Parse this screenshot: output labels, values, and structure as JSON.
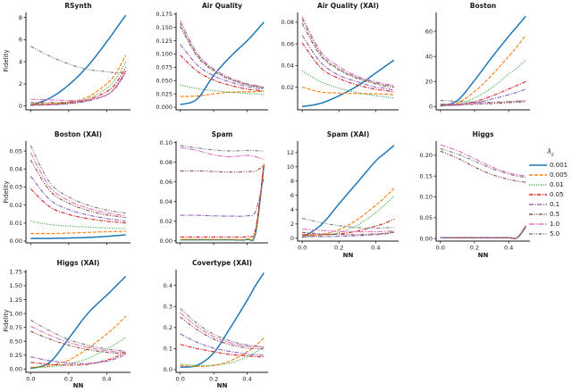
{
  "figure": {
    "ylabel": "Fidelity",
    "xlabel": "NN",
    "background": "#ffffff",
    "axis_color": "#1a1a1a",
    "legend": {
      "title_main": "λ",
      "title_sub": "s",
      "entries": [
        {
          "label": "0.001",
          "color": "#1f77b4",
          "dash": ""
        },
        {
          "label": "0.005",
          "color": "#ff7f0e",
          "dash": "4 1.8"
        },
        {
          "label": "0.01",
          "color": "#2ca02c",
          "dash": "1 1.6"
        },
        {
          "label": "0.05",
          "color": "#d62728",
          "dash": "4.5 1.5 1.2 1.5"
        },
        {
          "label": "0.1",
          "color": "#9467bd",
          "dash": "5 1.5 1.2 1.5"
        },
        {
          "label": "0.5",
          "color": "#8c564b",
          "dash": "4 1.5 1.2 1.5 1.2 1.5"
        },
        {
          "label": "1.0",
          "color": "#e377c2",
          "dash": "6 1.5 1.5 1.5"
        },
        {
          "label": "5.0",
          "color": "#7f7f7f",
          "dash": "4 1.5 1 1.5 1 1.5"
        }
      ]
    }
  },
  "chart_data": {
    "type": "line",
    "x": [
      0.0,
      0.1,
      0.2,
      0.3,
      0.4,
      0.45,
      0.5
    ],
    "xlim": [
      -0.025,
      0.525
    ],
    "xticks": [
      0.0,
      0.2,
      0.4
    ],
    "xtick_labels": [
      "0.0",
      "0.2",
      "0.4"
    ],
    "series_names": [
      "0.001",
      "0.005",
      "0.01",
      "0.05",
      "0.1",
      "0.5",
      "1.0",
      "5.0"
    ],
    "plots": [
      {
        "title": "RSynth",
        "ylabel": "Fidelity",
        "xlabel": "",
        "xticks_labeled": false,
        "ylim": [
          -0.35,
          8.45
        ],
        "yticks": [
          0,
          2,
          4,
          6,
          8
        ],
        "ytick_labels": [
          "0",
          "2",
          "4",
          "6",
          "8"
        ],
        "series": [
          [
            0.05,
            0.7,
            1.9,
            3.6,
            5.8,
            7.0,
            8.2
          ],
          [
            0.15,
            0.2,
            0.35,
            0.8,
            2.0,
            3.0,
            4.6
          ],
          [
            0.1,
            0.15,
            0.3,
            0.65,
            1.6,
            2.5,
            4.0
          ],
          [
            0.1,
            0.12,
            0.25,
            0.55,
            1.3,
            2.1,
            3.5
          ],
          [
            0.05,
            0.1,
            0.2,
            0.45,
            1.0,
            1.8,
            3.1
          ],
          [
            0.3,
            0.3,
            0.35,
            0.5,
            1.0,
            1.7,
            3.0
          ],
          [
            0.6,
            0.55,
            0.5,
            0.55,
            1.0,
            1.8,
            3.2
          ],
          [
            5.4,
            4.5,
            3.8,
            3.3,
            3.1,
            3.0,
            3.1
          ]
        ]
      },
      {
        "title": "Air Quality",
        "ylabel": "",
        "xlabel": "",
        "xticks_labeled": false,
        "ylim": [
          -0.005,
          0.178
        ],
        "yticks": [
          0.0,
          0.025,
          0.05,
          0.075,
          0.1,
          0.125,
          0.15,
          0.175
        ],
        "ytick_labels": [
          "0.000",
          "0.025",
          "0.050",
          "0.075",
          "0.100",
          "0.125",
          "0.150",
          "0.175"
        ],
        "series": [
          [
            0.005,
            0.015,
            0.06,
            0.095,
            0.125,
            0.142,
            0.16
          ],
          [
            0.02,
            0.021,
            0.025,
            0.028,
            0.029,
            0.029,
            0.03
          ],
          [
            0.042,
            0.035,
            0.031,
            0.028,
            0.026,
            0.025,
            0.024
          ],
          [
            0.098,
            0.068,
            0.051,
            0.041,
            0.034,
            0.032,
            0.03
          ],
          [
            0.118,
            0.08,
            0.059,
            0.047,
            0.039,
            0.036,
            0.034
          ],
          [
            0.152,
            0.096,
            0.068,
            0.052,
            0.042,
            0.039,
            0.036
          ],
          [
            0.163,
            0.102,
            0.072,
            0.055,
            0.044,
            0.041,
            0.038
          ],
          [
            0.158,
            0.099,
            0.07,
            0.053,
            0.043,
            0.04,
            0.037
          ]
        ]
      },
      {
        "title": "Air Quality (XAI)",
        "ylabel": "",
        "xlabel": "",
        "xticks_labeled": false,
        "ylim": [
          -0.001,
          0.089
        ],
        "yticks": [
          0.02,
          0.04,
          0.06,
          0.08
        ],
        "ytick_labels": [
          "0.02",
          "0.04",
          "0.06",
          "0.08"
        ],
        "series": [
          [
            0.002,
            0.005,
            0.012,
            0.021,
            0.033,
            0.039,
            0.045
          ],
          [
            0.02,
            0.0155,
            0.0145,
            0.014,
            0.0138,
            0.0135,
            0.013
          ],
          [
            0.035,
            0.025,
            0.019,
            0.015,
            0.012,
            0.011,
            0.01
          ],
          [
            0.061,
            0.038,
            0.028,
            0.022,
            0.018,
            0.017,
            0.0155
          ],
          [
            0.068,
            0.043,
            0.031,
            0.025,
            0.02,
            0.019,
            0.017
          ],
          [
            0.079,
            0.049,
            0.036,
            0.028,
            0.023,
            0.021,
            0.02
          ],
          [
            0.085,
            0.053,
            0.039,
            0.03,
            0.025,
            0.023,
            0.022
          ],
          [
            0.083,
            0.051,
            0.037,
            0.029,
            0.024,
            0.022,
            0.021
          ]
        ]
      },
      {
        "title": "Boston",
        "ylabel": "",
        "xlabel": "",
        "xticks_labeled": false,
        "ylim": [
          -2.5,
          75
        ],
        "yticks": [
          0,
          20,
          40,
          60
        ],
        "ytick_labels": [
          "0",
          "20",
          "40",
          "60"
        ],
        "series": [
          [
            0.5,
            5,
            21,
            39,
            56,
            64,
            72
          ],
          [
            1,
            3,
            12,
            25,
            40,
            48,
            57
          ],
          [
            1,
            2,
            7,
            15,
            26,
            31,
            37
          ],
          [
            1,
            1.5,
            4,
            8.5,
            14,
            17,
            20
          ],
          [
            1,
            1.2,
            3,
            6,
            9.5,
            11.5,
            14
          ],
          [
            1.5,
            1.6,
            2,
            2.5,
            3.2,
            3.6,
            4
          ],
          [
            2.2,
            2.2,
            2.5,
            3,
            4,
            4.5,
            5
          ],
          [
            5,
            4.2,
            3.6,
            3.6,
            4,
            4.2,
            4.5
          ]
        ]
      },
      {
        "title": "Boston (XAI)",
        "ylabel": "Fidelity",
        "xlabel": "",
        "xticks_labeled": false,
        "ylim": [
          -0.001,
          0.0555
        ],
        "yticks": [
          0.0,
          0.01,
          0.02,
          0.03,
          0.04,
          0.05
        ],
        "ytick_labels": [
          "0.00",
          "0.01",
          "0.02",
          "0.03",
          "0.04",
          "0.05"
        ],
        "series": [
          [
            0.0015,
            0.0015,
            0.0017,
            0.002,
            0.0026,
            0.003,
            0.0035
          ],
          [
            0.0042,
            0.0042,
            0.0044,
            0.0048,
            0.0052,
            0.0053,
            0.0055
          ],
          [
            0.011,
            0.0092,
            0.0083,
            0.0078,
            0.0073,
            0.0071,
            0.007
          ],
          [
            0.029,
            0.019,
            0.0148,
            0.0125,
            0.011,
            0.0105,
            0.01
          ],
          [
            0.036,
            0.023,
            0.0175,
            0.0145,
            0.0125,
            0.0118,
            0.011
          ],
          [
            0.045,
            0.028,
            0.021,
            0.017,
            0.0145,
            0.0138,
            0.013
          ],
          [
            0.049,
            0.03,
            0.0225,
            0.0183,
            0.0157,
            0.0148,
            0.014
          ],
          [
            0.053,
            0.0325,
            0.0245,
            0.02,
            0.0172,
            0.0163,
            0.0155
          ]
        ]
      },
      {
        "title": "Spam",
        "ylabel": "",
        "xlabel": "",
        "xticks_labeled": false,
        "ylim": [
          -0.002,
          0.1015
        ],
        "yticks": [
          0.0,
          0.02,
          0.04,
          0.06,
          0.08,
          0.1
        ],
        "ytick_labels": [
          "0.00",
          "0.02",
          "0.04",
          "0.06",
          "0.08",
          "0.10"
        ],
        "series": [
          [
            0.0012,
            0.0012,
            0.0012,
            0.0012,
            0.0015,
            0.008,
            0.077
          ],
          [
            0.0015,
            0.0015,
            0.0015,
            0.0015,
            0.0018,
            0.009,
            0.0775
          ],
          [
            0.001,
            0.001,
            0.001,
            0.001,
            0.0013,
            0.008,
            0.078
          ],
          [
            0.004,
            0.004,
            0.004,
            0.004,
            0.0045,
            0.012,
            0.079
          ],
          [
            0.026,
            0.026,
            0.0255,
            0.0252,
            0.0255,
            0.03,
            0.065
          ],
          [
            0.071,
            0.0712,
            0.0705,
            0.07,
            0.0705,
            0.071,
            0.077
          ],
          [
            0.095,
            0.092,
            0.0875,
            0.0855,
            0.087,
            0.0855,
            0.083
          ],
          [
            0.097,
            0.0945,
            0.0925,
            0.0915,
            0.092,
            0.0918,
            0.0912
          ]
        ]
      },
      {
        "title": "Spam (XAI)",
        "ylabel": "",
        "xlabel": "NN",
        "xticks_labeled": true,
        "ylim": [
          -0.4,
          13.6
        ],
        "yticks": [
          0,
          2,
          4,
          6,
          8,
          10,
          12
        ],
        "ytick_labels": [
          "0",
          "2",
          "4",
          "6",
          "8",
          "10",
          "12"
        ],
        "series": [
          [
            0.1,
            1.8,
            4.8,
            7.8,
            10.8,
            11.9,
            13
          ],
          [
            0.35,
            0.5,
            1.2,
            2.6,
            4.6,
            5.7,
            7.0
          ],
          [
            0.25,
            0.35,
            0.8,
            1.8,
            3.6,
            4.7,
            5.9
          ],
          [
            0.5,
            0.5,
            0.6,
            1.0,
            1.7,
            2.1,
            2.7
          ],
          [
            0.2,
            0.22,
            0.27,
            0.35,
            0.5,
            0.6,
            0.8
          ],
          [
            0.8,
            0.62,
            0.52,
            0.5,
            0.6,
            0.7,
            0.9
          ],
          [
            1.3,
            1.1,
            0.95,
            0.9,
            0.92,
            0.95,
            1.0
          ],
          [
            2.8,
            2.2,
            1.75,
            1.5,
            1.42,
            1.45,
            1.5
          ]
        ]
      },
      {
        "title": "Higgs",
        "ylabel": "",
        "xlabel": "NN",
        "xticks_labeled": true,
        "ylim": [
          -0.006,
          0.234
        ],
        "yticks": [
          0.0,
          0.05,
          0.1,
          0.15,
          0.2
        ],
        "ytick_labels": [
          "0.00",
          "0.05",
          "0.10",
          "0.15",
          "0.20"
        ],
        "series": [
          [
            0.002,
            0.002,
            0.002,
            0.002,
            0.002,
            0.002,
            0.028
          ],
          [
            0.0022,
            0.0022,
            0.0022,
            0.0022,
            0.0022,
            0.0022,
            0.03
          ],
          [
            0.0025,
            0.0025,
            0.0025,
            0.0025,
            0.0025,
            0.0025,
            0.032
          ],
          [
            0.002,
            0.002,
            0.002,
            0.002,
            0.002,
            0.002,
            0.029
          ],
          [
            0.0021,
            0.0021,
            0.0021,
            0.0021,
            0.0021,
            0.0021,
            0.03
          ],
          [
            0.21,
            0.193,
            0.172,
            0.154,
            0.142,
            0.138,
            0.135
          ],
          [
            0.225,
            0.211,
            0.192,
            0.172,
            0.158,
            0.153,
            0.15
          ],
          [
            0.216,
            0.203,
            0.186,
            0.168,
            0.155,
            0.15,
            0.147
          ]
        ]
      },
      {
        "title": "Higgs (XAI)",
        "ylabel": "Fidelity",
        "xlabel": "NN",
        "xticks_labeled": true,
        "ylim": [
          -0.06,
          1.79
        ],
        "yticks": [
          0.0,
          0.25,
          0.5,
          0.75,
          1.0,
          1.25,
          1.5,
          1.75
        ],
        "ytick_labels": [
          "0.00",
          "0.25",
          "0.50",
          "0.75",
          "1.00",
          "1.25",
          "1.50",
          "1.75"
        ],
        "series": [
          [
            0.01,
            0.12,
            0.55,
            1.0,
            1.33,
            1.5,
            1.67
          ],
          [
            0.03,
            0.06,
            0.16,
            0.37,
            0.63,
            0.78,
            0.95
          ],
          [
            0.02,
            0.04,
            0.09,
            0.19,
            0.36,
            0.46,
            0.57
          ],
          [
            0.12,
            0.085,
            0.07,
            0.085,
            0.16,
            0.22,
            0.3
          ],
          [
            0.22,
            0.15,
            0.11,
            0.1,
            0.14,
            0.19,
            0.26
          ],
          [
            0.68,
            0.54,
            0.43,
            0.35,
            0.3,
            0.285,
            0.27
          ],
          [
            0.77,
            0.61,
            0.48,
            0.39,
            0.33,
            0.31,
            0.3
          ],
          [
            0.88,
            0.69,
            0.53,
            0.43,
            0.36,
            0.34,
            0.32
          ]
        ]
      },
      {
        "title": "Covertype (XAI)",
        "ylabel": "",
        "xlabel": "NN",
        "xticks_labeled": true,
        "ylim": [
          -0.013,
          0.475
        ],
        "yticks": [
          0.0,
          0.1,
          0.2,
          0.3,
          0.4
        ],
        "ytick_labels": [
          "0.0",
          "0.1",
          "0.2",
          "0.3",
          "0.4"
        ],
        "series": [
          [
            0.012,
            0.02,
            0.08,
            0.2,
            0.33,
            0.4,
            0.46
          ],
          [
            0.02,
            0.015,
            0.02,
            0.042,
            0.085,
            0.115,
            0.15
          ],
          [
            0.026,
            0.02,
            0.021,
            0.032,
            0.06,
            0.082,
            0.11
          ],
          [
            0.12,
            0.1,
            0.085,
            0.072,
            0.065,
            0.062,
            0.06
          ],
          [
            0.17,
            0.13,
            0.102,
            0.086,
            0.074,
            0.071,
            0.068
          ],
          [
            0.25,
            0.19,
            0.145,
            0.118,
            0.103,
            0.1,
            0.098
          ],
          [
            0.27,
            0.205,
            0.157,
            0.127,
            0.112,
            0.11,
            0.108
          ],
          [
            0.29,
            0.22,
            0.168,
            0.136,
            0.117,
            0.112,
            0.105
          ]
        ]
      }
    ]
  }
}
